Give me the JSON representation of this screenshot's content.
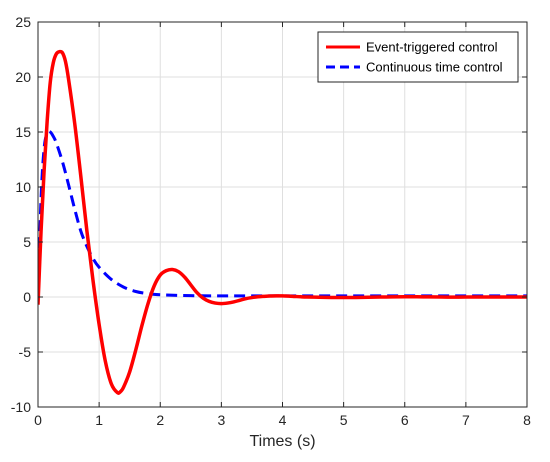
{
  "chart_data": {
    "type": "line",
    "title": "",
    "xlabel": "Times (s)",
    "ylabel": "",
    "xlim": [
      0,
      8
    ],
    "ylim": [
      -10,
      25
    ],
    "xticks": [
      0,
      1,
      2,
      3,
      4,
      5,
      6,
      7,
      8
    ],
    "yticks": [
      -10,
      -5,
      0,
      5,
      10,
      15,
      20,
      25
    ],
    "grid": true,
    "legend_position": "top-right",
    "series": [
      {
        "name": "Event-triggered control",
        "color": "#ff0000",
        "style": "solid",
        "x": [
          0,
          0.05,
          0.1,
          0.15,
          0.2,
          0.25,
          0.3,
          0.35,
          0.4,
          0.45,
          0.5,
          0.6,
          0.7,
          0.8,
          0.9,
          1.0,
          1.1,
          1.2,
          1.3,
          1.35,
          1.4,
          1.5,
          1.6,
          1.7,
          1.8,
          1.9,
          2.0,
          2.1,
          2.2,
          2.3,
          2.4,
          2.5,
          2.6,
          2.7,
          2.8,
          2.9,
          3.0,
          3.1,
          3.2,
          3.3,
          3.4,
          3.5,
          3.6,
          3.7,
          3.8,
          3.9,
          4.0,
          4.1,
          4.2,
          4.3,
          4.4,
          4.6,
          4.8,
          5.0,
          5.2,
          5.4,
          5.6,
          5.8,
          6.0,
          6.2,
          6.4,
          6.6,
          6.8,
          7.0,
          7.5,
          8.0
        ],
        "y": [
          -0.7,
          6.0,
          11.5,
          16.0,
          19.5,
          21.3,
          22.1,
          22.3,
          22.2,
          21.4,
          19.8,
          15.8,
          11.0,
          6.0,
          1.5,
          -2.5,
          -5.8,
          -7.9,
          -8.7,
          -8.6,
          -8.2,
          -6.8,
          -4.8,
          -2.6,
          -0.6,
          1.0,
          2.0,
          2.4,
          2.5,
          2.3,
          1.8,
          1.1,
          0.4,
          -0.1,
          -0.4,
          -0.55,
          -0.6,
          -0.55,
          -0.45,
          -0.3,
          -0.15,
          -0.05,
          0.02,
          0.06,
          0.09,
          0.1,
          0.1,
          0.08,
          0.05,
          0.02,
          0.0,
          -0.02,
          -0.04,
          -0.05,
          -0.04,
          -0.02,
          0.0,
          0.01,
          0.02,
          0.02,
          0.01,
          0.0,
          -0.01,
          0.0,
          0.0,
          0.0
        ]
      },
      {
        "name": "Continuous time control",
        "color": "#0000ff",
        "style": "dashed",
        "x": [
          0,
          0.05,
          0.1,
          0.15,
          0.2,
          0.25,
          0.3,
          0.4,
          0.5,
          0.6,
          0.7,
          0.8,
          0.9,
          1.0,
          1.2,
          1.4,
          1.6,
          1.8,
          2.0,
          2.5,
          3.0,
          4.0,
          5.0,
          6.0,
          7.0,
          8.0
        ],
        "y": [
          -0.2,
          9.0,
          13.5,
          14.9,
          15.0,
          14.6,
          14.0,
          12.3,
          10.2,
          8.0,
          6.0,
          4.6,
          3.5,
          2.7,
          1.6,
          0.9,
          0.5,
          0.3,
          0.2,
          0.12,
          0.1,
          0.1,
          0.1,
          0.1,
          0.1,
          0.1
        ]
      }
    ]
  }
}
